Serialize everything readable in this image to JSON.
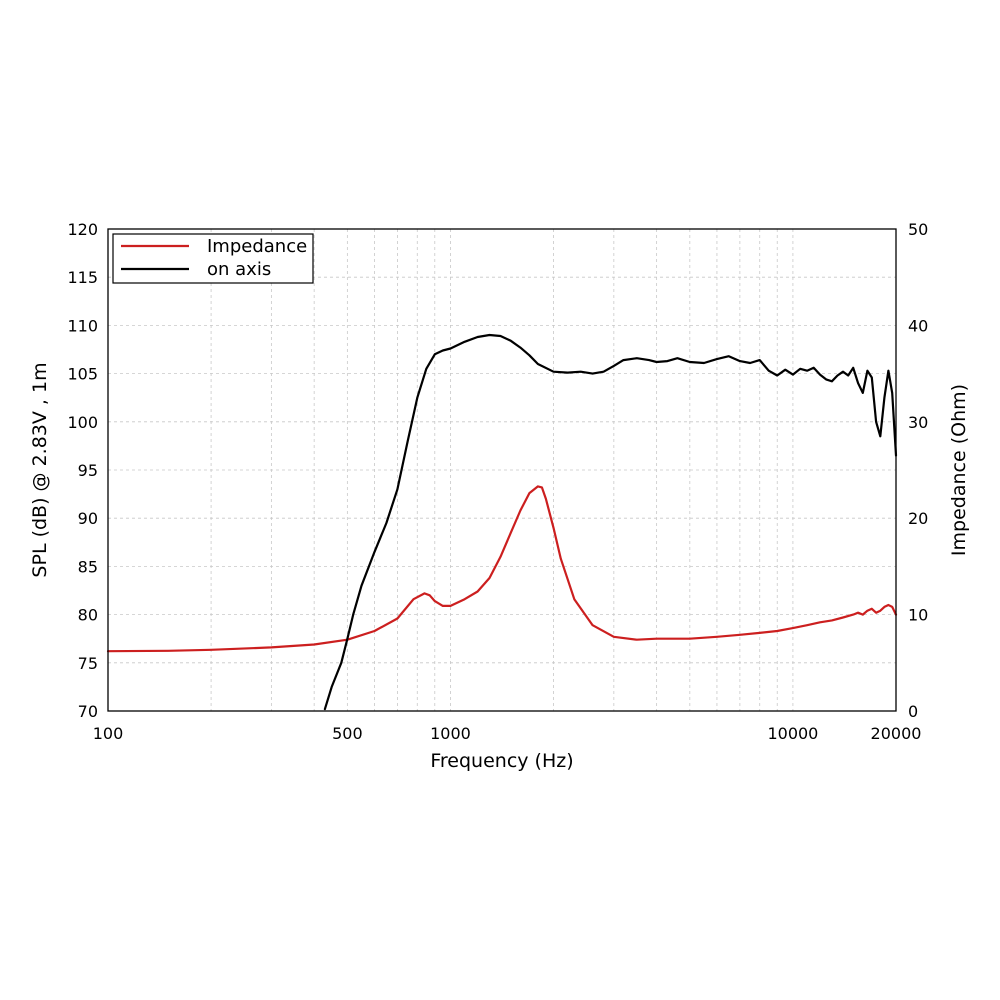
{
  "chart_data": {
    "type": "line",
    "xlabel": "Frequency (Hz)",
    "ylabel": "SPL (dB) @ 2.83V , 1m",
    "y2label": "Impedance (Ohm)",
    "x_scale": "log",
    "xlim": [
      100,
      20000
    ],
    "ylim": [
      70,
      120
    ],
    "y2lim": [
      0,
      50
    ],
    "x_tick_labels": [
      "100",
      "500",
      "1000",
      "10000",
      "20000"
    ],
    "y_tick_labels": [
      "70",
      "75",
      "80",
      "85",
      "90",
      "95",
      "100",
      "105",
      "110",
      "115",
      "120"
    ],
    "y2_tick_labels": [
      "0",
      "10",
      "20",
      "30",
      "40",
      "50"
    ],
    "grid": true,
    "legend_position": "top-left",
    "series": [
      {
        "name": "Impedance",
        "axis": "right",
        "color": "#cc1f1f",
        "x": [
          100,
          150,
          200,
          300,
          400,
          500,
          600,
          700,
          780,
          840,
          870,
          900,
          950,
          1000,
          1100,
          1200,
          1300,
          1400,
          1500,
          1600,
          1700,
          1800,
          1850,
          1900,
          2000,
          2100,
          2300,
          2600,
          3000,
          3500,
          4000,
          5000,
          6000,
          7000,
          8000,
          9000,
          10000,
          11000,
          12000,
          13000,
          14000,
          15000,
          15500,
          16000,
          16500,
          17000,
          17500,
          18000,
          18500,
          19000,
          19500,
          20000
        ],
        "values": [
          6.2,
          6.25,
          6.35,
          6.6,
          6.9,
          7.4,
          8.3,
          9.6,
          11.6,
          12.2,
          12.0,
          11.4,
          10.9,
          10.9,
          11.6,
          12.4,
          13.8,
          16.0,
          18.5,
          20.8,
          22.6,
          23.3,
          23.2,
          22.0,
          19.0,
          15.8,
          11.6,
          8.9,
          7.7,
          7.4,
          7.5,
          7.5,
          7.7,
          7.9,
          8.1,
          8.3,
          8.6,
          8.9,
          9.2,
          9.4,
          9.7,
          10.0,
          10.2,
          10.0,
          10.4,
          10.6,
          10.2,
          10.4,
          10.8,
          11.0,
          10.8,
          10.0
        ]
      },
      {
        "name": "on axis",
        "axis": "left",
        "color": "#000000",
        "x": [
          430,
          450,
          480,
          500,
          520,
          550,
          600,
          650,
          700,
          750,
          800,
          850,
          900,
          950,
          1000,
          1100,
          1200,
          1300,
          1400,
          1500,
          1600,
          1700,
          1800,
          2000,
          2200,
          2400,
          2600,
          2800,
          3000,
          3200,
          3500,
          3800,
          4000,
          4300,
          4600,
          5000,
          5500,
          6000,
          6500,
          7000,
          7500,
          8000,
          8500,
          9000,
          9500,
          10000,
          10500,
          11000,
          11500,
          12000,
          12500,
          13000,
          13500,
          14000,
          14500,
          15000,
          15500,
          16000,
          16500,
          17000,
          17500,
          18000,
          18500,
          19000,
          19500,
          20000
        ],
        "values": [
          70.2,
          72.5,
          75.0,
          77.5,
          80.0,
          83.0,
          86.5,
          89.5,
          93.0,
          98.0,
          102.5,
          105.5,
          107.0,
          107.4,
          107.6,
          108.3,
          108.8,
          109.0,
          108.9,
          108.4,
          107.7,
          106.9,
          106.0,
          105.2,
          105.1,
          105.2,
          105.0,
          105.2,
          105.8,
          106.4,
          106.6,
          106.4,
          106.2,
          106.3,
          106.6,
          106.2,
          106.1,
          106.5,
          106.8,
          106.3,
          106.1,
          106.4,
          105.3,
          104.8,
          105.4,
          104.9,
          105.5,
          105.3,
          105.6,
          104.9,
          104.4,
          104.2,
          104.8,
          105.2,
          104.8,
          105.6,
          104.0,
          103.0,
          105.3,
          104.6,
          100.0,
          98.5,
          102.5,
          105.3,
          103.0,
          96.5
        ]
      }
    ]
  }
}
